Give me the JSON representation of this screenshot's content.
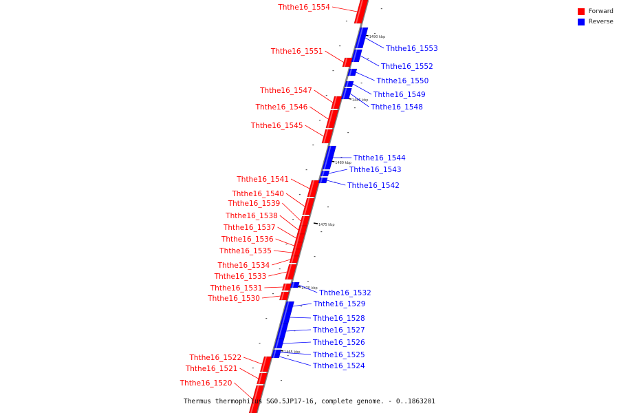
{
  "colors": {
    "forward": "#ff0000",
    "reverse": "#0000ff",
    "axis": "#888888"
  },
  "legend": [
    {
      "label": "Forward",
      "color": "#ff0000"
    },
    {
      "label": "Reverse",
      "color": "#0000ff"
    }
  ],
  "caption": "Thermus thermophilus SG0.5JP17-16, complete genome. - 0..1863201",
  "ticks": [
    {
      "label": "1490 kbp",
      "kbp": 1490
    },
    {
      "label": "1485 kbp",
      "kbp": 1485
    },
    {
      "label": "1480 kbp",
      "kbp": 1480
    },
    {
      "label": "1475 kbp",
      "kbp": 1475
    },
    {
      "label": "1470 kbp",
      "kbp": 1470
    },
    {
      "label": "1465 kbp",
      "kbp": 1465
    }
  ],
  "genes": {
    "forward": [
      "Ththe16_1554",
      "Ththe16_1551",
      "Ththe16_1547",
      "Ththe16_1546",
      "Ththe16_1545",
      "Ththe16_1541",
      "Ththe16_1540",
      "Ththe16_1539",
      "Ththe16_1538",
      "Ththe16_1537",
      "Ththe16_1536",
      "Ththe16_1535",
      "Ththe16_1534",
      "Ththe16_1533",
      "Ththe16_1531",
      "Ththe16_1530",
      "Ththe16_1522",
      "Ththe16_1521",
      "Ththe16_1520"
    ],
    "reverse": [
      "Ththe16_1553",
      "Ththe16_1552",
      "Ththe16_1550",
      "Ththe16_1549",
      "Ththe16_1548",
      "Ththe16_1544",
      "Ththe16_1543",
      "Ththe16_1542",
      "Ththe16_1532",
      "Ththe16_1529",
      "Ththe16_1528",
      "Ththe16_1527",
      "Ththe16_1526",
      "Ththe16_1525",
      "Ththe16_1524"
    ]
  }
}
